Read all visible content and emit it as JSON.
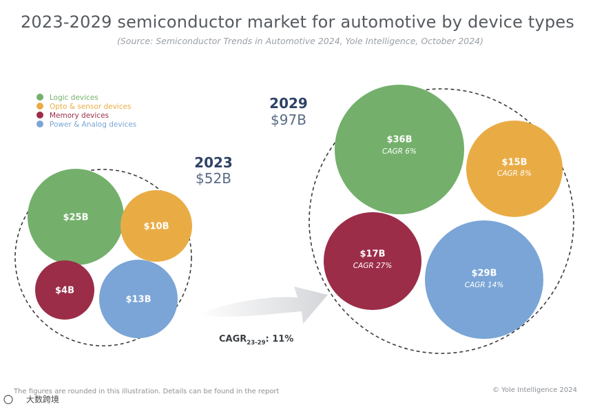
{
  "chart_data": {
    "type": "bubble",
    "title": "2023-2029 semiconductor market for automotive by device types",
    "subtitle": "(Source: Semiconductor Trends in Automotive 2024, Yole Intelligence, October 2024)",
    "legend": [
      {
        "label": "Logic devices",
        "color": "#74b06c"
      },
      {
        "label": "Opto & sensor devices",
        "color": "#e9ac45"
      },
      {
        "label": "Memory devices",
        "color": "#9b2d48"
      },
      {
        "label": "Power & Analog devices",
        "color": "#7aa5d6"
      }
    ],
    "groups": [
      {
        "year": "2023",
        "total_label": "$52B",
        "total": 52,
        "bubbles": [
          {
            "category": "Logic devices",
            "value": 25,
            "label": "$25B",
            "color": "#74b06c"
          },
          {
            "category": "Opto & sensor devices",
            "value": 10,
            "label": "$10B",
            "color": "#e9ac45"
          },
          {
            "category": "Memory devices",
            "value": 4,
            "label": "$4B",
            "color": "#9b2d48"
          },
          {
            "category": "Power & Analog devices",
            "value": 13,
            "label": "$13B",
            "color": "#7aa5d6"
          }
        ]
      },
      {
        "year": "2029",
        "total_label": "$97B",
        "total": 97,
        "bubbles": [
          {
            "category": "Logic devices",
            "value": 36,
            "label": "$36B",
            "cagr": "CAGR 6%",
            "color": "#74b06c"
          },
          {
            "category": "Opto & sensor devices",
            "value": 15,
            "label": "$15B",
            "cagr": "CAGR 8%",
            "color": "#e9ac45"
          },
          {
            "category": "Memory devices",
            "value": 17,
            "label": "$17B",
            "cagr": "CAGR 27%",
            "color": "#9b2d48"
          },
          {
            "category": "Power & Analog devices",
            "value": 29,
            "label": "$29B",
            "cagr": "CAGR 14%",
            "color": "#7aa5d6"
          }
        ]
      }
    ],
    "overall_cagr": {
      "label": "CAGR",
      "subscript": "23-29",
      "value": ": 11%"
    },
    "footnote": "The figures are rounded in this illustration. Details can be found in the report",
    "copyright": "© Yole Intelligence 2024",
    "watermark": "大数跨境"
  }
}
